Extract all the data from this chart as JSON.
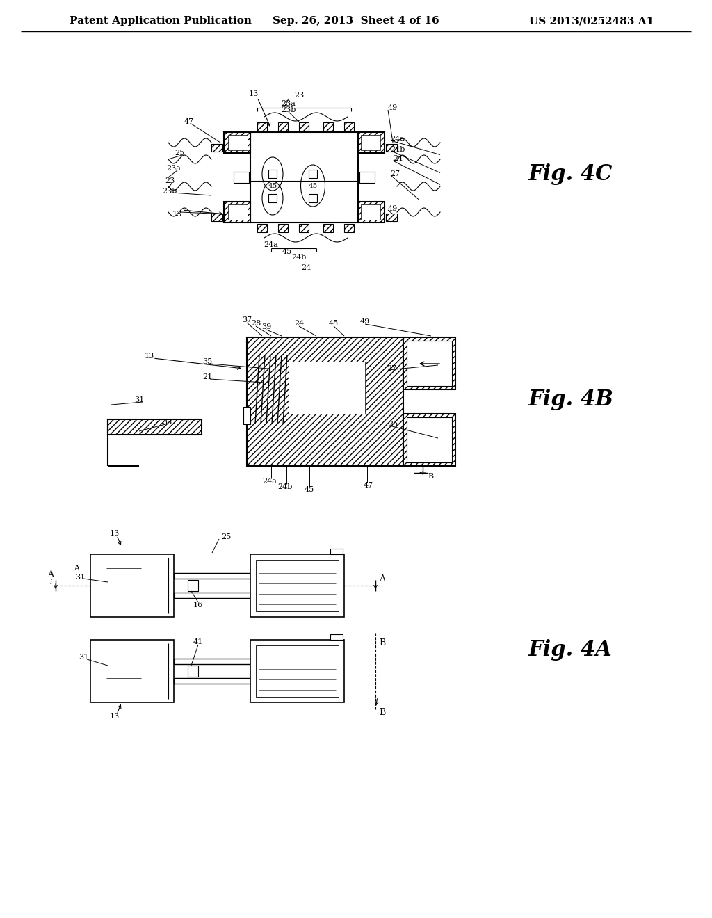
{
  "bg_color": "#ffffff",
  "header_left": "Patent Application Publication",
  "header_center": "Sep. 26, 2013  Sheet 4 of 16",
  "header_right": "US 2013/0252483 A1",
  "fig_label_4C": "Fig. 4C",
  "fig_label_4B": "Fig. 4B",
  "fig_label_4A": "Fig. 4A"
}
